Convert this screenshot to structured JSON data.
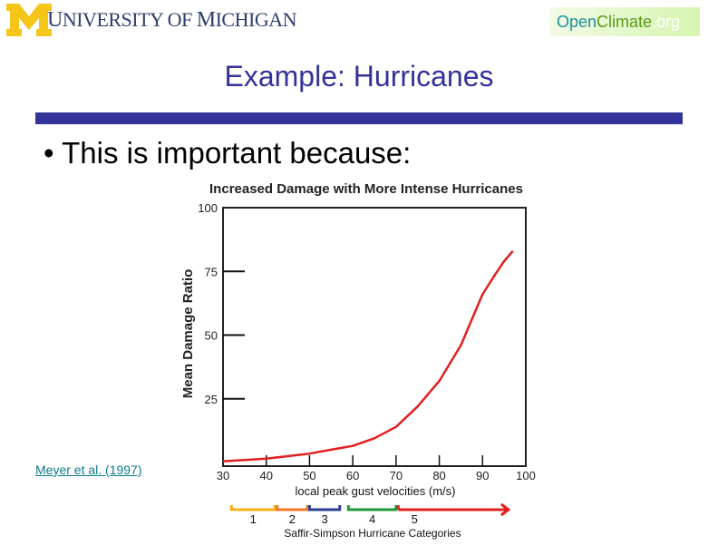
{
  "header": {
    "university": "University of Michigan",
    "university_display": [
      "U",
      "NIVERSITY OF ",
      "M",
      "ICHIGAN"
    ],
    "site_logo": {
      "open": "Open",
      "climate": "Climate",
      "org": ".org"
    }
  },
  "slide": {
    "title": "Example: Hurricanes",
    "bullet": "This is important because:",
    "citation": "Meyer et al. (1997)"
  },
  "colors": {
    "accent": "#333399",
    "curve": "#e02020",
    "maize": "#f5c518"
  },
  "chart_data": {
    "type": "line",
    "title": "Increased Damage with More Intense Hurricanes",
    "xlabel": "local peak gust velocities (m/s)",
    "ylabel": "Mean Damage Ratio",
    "xlim": [
      30,
      100
    ],
    "ylim": [
      0,
      100
    ],
    "xticks": [
      30,
      40,
      50,
      60,
      70,
      80,
      90,
      100
    ],
    "yticks": [
      25,
      50,
      75,
      100
    ],
    "series": [
      {
        "name": "Mean Damage Ratio",
        "color": "#e02020",
        "x": [
          30,
          35,
          40,
          45,
          50,
          55,
          60,
          65,
          70,
          75,
          80,
          85,
          88,
          90,
          93,
          95,
          97
        ],
        "y": [
          0.5,
          1,
          1.5,
          2.5,
          3.5,
          5,
          6.5,
          9.5,
          14,
          22,
          32,
          46,
          58,
          66,
          74,
          79,
          83
        ]
      }
    ],
    "categories_title": "Saffir-Simpson Hurricane Categories",
    "categories": [
      {
        "label": "1",
        "from": 33,
        "to": 42,
        "color": "#f5b21b"
      },
      {
        "label": "2",
        "from": 42.5,
        "to": 49.5,
        "color": "#ef7a22"
      },
      {
        "label": "3",
        "from": 50,
        "to": 57,
        "color": "#2f3d96"
      },
      {
        "label": "4",
        "from": 59,
        "to": 70,
        "color": "#1d9a3c"
      },
      {
        "label": "5",
        "from": 70.5,
        "to": 96,
        "color": "#e02020"
      }
    ]
  }
}
